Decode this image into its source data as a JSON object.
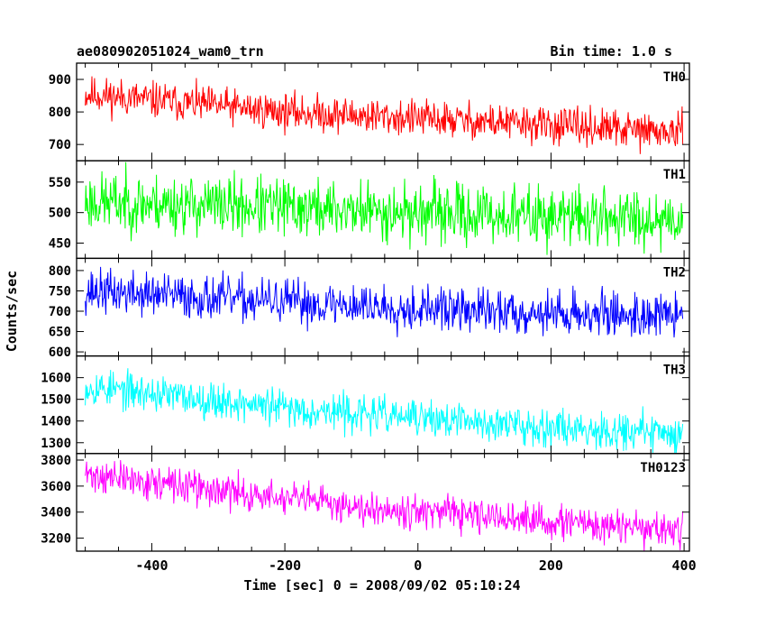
{
  "header": {
    "title": "ae080902051024_wam0_trn",
    "bin_time": "Bin time: 1.0 s"
  },
  "chart_data": {
    "type": "line",
    "xlabel": "Time [sec] 0 = 2008/09/02 05:10:24",
    "ylabel": "Counts/sec",
    "xlim": [
      -513,
      408
    ],
    "xticks": [
      "-400",
      "-200",
      "0",
      "200",
      "400"
    ],
    "xtick_values": [
      -400,
      -200,
      0,
      200,
      400
    ],
    "panels": [
      {
        "name": "TH0",
        "color": "#ff0000",
        "ylim": [
          650,
          950
        ],
        "yticks": [
          "700",
          "800",
          "900"
        ],
        "ytick_values": [
          700,
          800,
          900
        ],
        "trend": [
          [
            -500,
            855
          ],
          [
            -200,
            800
          ],
          [
            100,
            770
          ],
          [
            400,
            735
          ]
        ],
        "noise": 28,
        "x_start": -500,
        "x_end": 398,
        "seed": 11
      },
      {
        "name": "TH1",
        "color": "#00ff00",
        "ylim": [
          425,
          585
        ],
        "yticks": [
          "450",
          "500",
          "550"
        ],
        "ytick_values": [
          450,
          500,
          550
        ],
        "trend": [
          [
            -500,
            518
          ],
          [
            -200,
            508
          ],
          [
            100,
            496
          ],
          [
            400,
            490
          ]
        ],
        "noise": 24,
        "x_start": -500,
        "x_end": 398,
        "seed": 23
      },
      {
        "name": "TH2",
        "color": "#0000ff",
        "ylim": [
          590,
          830
        ],
        "yticks": [
          "600",
          "650",
          "700",
          "750",
          "800"
        ],
        "ytick_values": [
          600,
          650,
          700,
          750,
          800
        ],
        "trend": [
          [
            -500,
            750
          ],
          [
            -200,
            722
          ],
          [
            100,
            700
          ],
          [
            400,
            688
          ]
        ],
        "noise": 27,
        "x_start": -500,
        "x_end": 398,
        "seed": 37
      },
      {
        "name": "TH3",
        "color": "#00ffff",
        "ylim": [
          1250,
          1700
        ],
        "yticks": [
          "1300",
          "1400",
          "1500",
          "1600"
        ],
        "ytick_values": [
          1300,
          1400,
          1500,
          1600
        ],
        "trend": [
          [
            -500,
            1560
          ],
          [
            -200,
            1460
          ],
          [
            100,
            1390
          ],
          [
            400,
            1340
          ]
        ],
        "noise": 42,
        "x_start": -500,
        "x_end": 398,
        "seed": 53
      },
      {
        "name": "TH0123",
        "color": "#ff00ff",
        "ylim": [
          3100,
          3850
        ],
        "yticks": [
          "3200",
          "3400",
          "3600",
          "3800"
        ],
        "ytick_values": [
          3200,
          3400,
          3600,
          3800
        ],
        "trend": [
          [
            -500,
            3690
          ],
          [
            -200,
            3500
          ],
          [
            100,
            3360
          ],
          [
            400,
            3250
          ]
        ],
        "noise": 65,
        "x_start": -500,
        "x_end": 398,
        "seed": 71
      }
    ]
  }
}
